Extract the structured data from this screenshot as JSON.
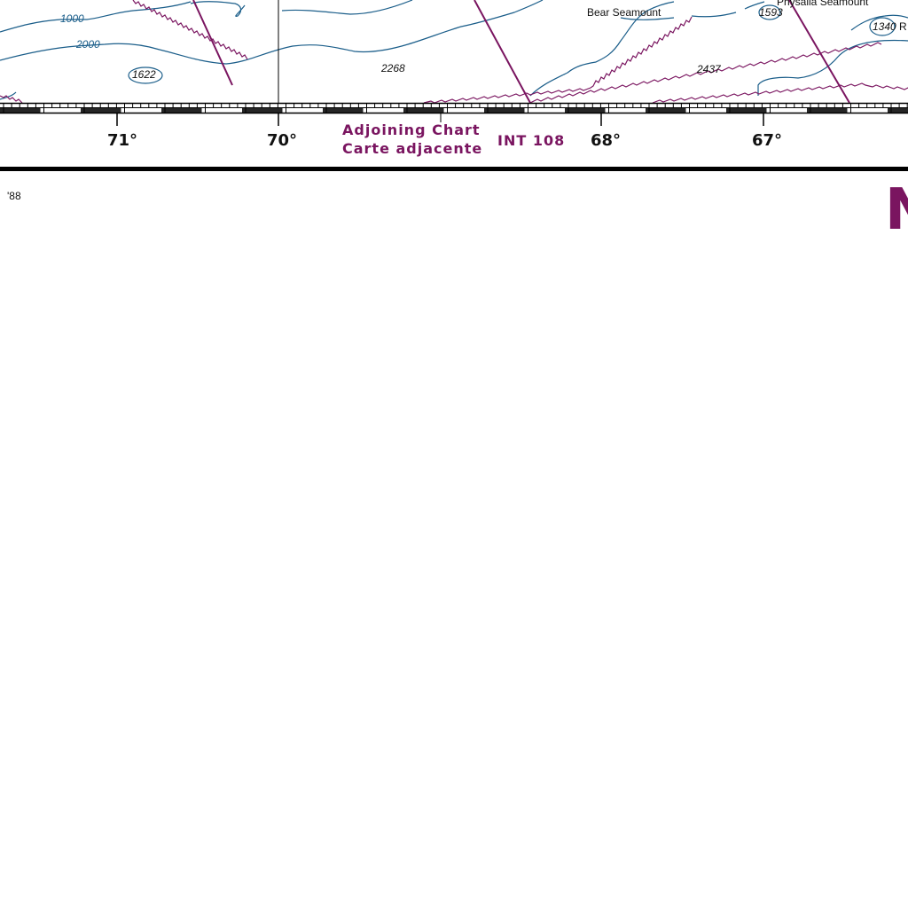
{
  "colors": {
    "contour": "#1b5e8a",
    "boundary": "#7a1560",
    "text": "#111111",
    "frame": "#000000",
    "background": "#ffffff"
  },
  "contours": {
    "label_1000": "1000",
    "label_2000": "2000"
  },
  "soundings": [
    "1622",
    "2268",
    "2437",
    "1593",
    "1340"
  ],
  "features": {
    "bear_seamount": "Bear Seamount",
    "physalia_seamount": "Physalia Seamount",
    "truncated_r": "R"
  },
  "longitudes": [
    "71°",
    "70°",
    "68°",
    "67°"
  ],
  "adjoining": {
    "line1": "Adjoining Chart",
    "line2": "Carte adjacente",
    "chart_number": "INT 108"
  },
  "edition": "'88",
  "title_fragment": "N"
}
